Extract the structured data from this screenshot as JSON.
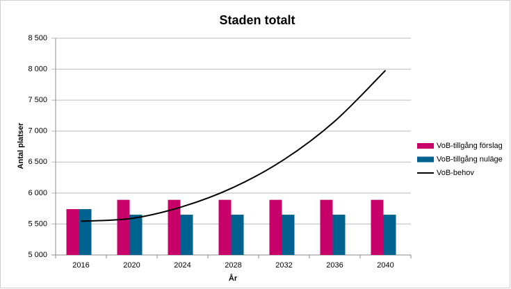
{
  "chart_data": {
    "type": "bar",
    "title": "Staden totalt",
    "x_label": "År",
    "y_label": "Antal platser",
    "categories": [
      "2016",
      "2020",
      "2024",
      "2028",
      "2032",
      "2036",
      "2040"
    ],
    "series": [
      {
        "name": "VoB-tillgång förslag",
        "color": "#c8006a",
        "values": [
          5740,
          5890,
          5890,
          5890,
          5890,
          5890,
          5890
        ]
      },
      {
        "name": "VoB-tillgång nuläge",
        "color": "#00628f",
        "values": [
          5740,
          5650,
          5650,
          5650,
          5650,
          5650,
          5650
        ]
      },
      {
        "name": "VoB-behov",
        "type": "line",
        "color": "#000000",
        "values": [
          5545,
          5590,
          5780,
          6090,
          6540,
          7160,
          7980
        ]
      }
    ],
    "ylim": [
      5000,
      8500
    ],
    "yticks": [
      {
        "value": 5000,
        "label": "5 000"
      },
      {
        "value": 5500,
        "label": "5 500"
      },
      {
        "value": 6000,
        "label": "6 000"
      },
      {
        "value": 6500,
        "label": "6 500"
      },
      {
        "value": 7000,
        "label": "7 000"
      },
      {
        "value": 7500,
        "label": "7 500"
      },
      {
        "value": 8000,
        "label": "8 000"
      },
      {
        "value": 8500,
        "label": "8 500"
      }
    ],
    "grid": true,
    "legend": "right"
  }
}
